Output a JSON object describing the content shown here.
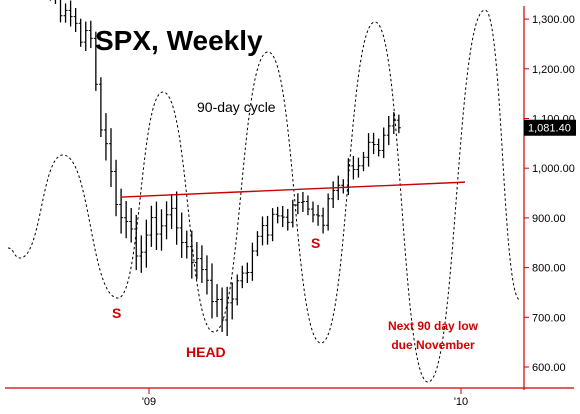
{
  "chart_data": {
    "type": "ohlc-bar",
    "title": "SPX, Weekly",
    "y_ticks": [
      "600.00",
      "700.00",
      "800.00",
      "900.00",
      "1,000.00",
      "1,100.00",
      "1,200.00",
      "1,300.00"
    ],
    "y_tick_values": [
      600,
      700,
      800,
      900,
      1000,
      1100,
      1200,
      1300
    ],
    "x_ticks": [
      "'09",
      "'10"
    ],
    "ylim": [
      560,
      1330
    ],
    "last_price_label": "1,081.40",
    "last_price": 1081.4,
    "annotations": {
      "cycle_label": "90-day cycle",
      "left_shoulder": "S",
      "head": "HEAD",
      "right_shoulder": "S",
      "note_line1": "Next 90 day low",
      "note_line2": "due November"
    },
    "neckline": {
      "start_price": 942,
      "end_price": 972
    },
    "colors": {
      "bars": "#000000",
      "neckline": "#cc0000",
      "annotation": "#d40000",
      "axis": "#cc0000",
      "badge": "#000000"
    }
  }
}
